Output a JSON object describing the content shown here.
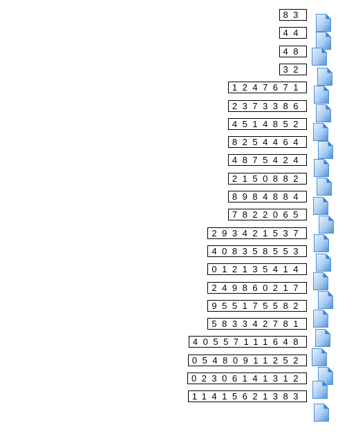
{
  "rows": [
    {
      "digits": "83"
    },
    {
      "digits": "44"
    },
    {
      "digits": "48"
    },
    {
      "digits": "32"
    },
    {
      "digits": "1247671"
    },
    {
      "digits": "2373386"
    },
    {
      "digits": "4514852"
    },
    {
      "digits": "8254464"
    },
    {
      "digits": "4875424"
    },
    {
      "digits": "2150882"
    },
    {
      "digits": "8984884"
    },
    {
      "digits": "7822065"
    },
    {
      "digits": "293421537"
    },
    {
      "digits": "408358553"
    },
    {
      "digits": "012135414"
    },
    {
      "digits": "249860217"
    },
    {
      "digits": "955175582"
    },
    {
      "digits": "583342781"
    },
    {
      "digits": "40557111648"
    },
    {
      "digits": "05480911252"
    },
    {
      "digits": "02306141312"
    },
    {
      "digits": "11415621383"
    }
  ],
  "icon": "document-icon",
  "colors": {
    "icon_light": "#e9f3fd",
    "icon_mid": "#a9cdf3",
    "icon_dark": "#4d8fd6",
    "icon_fold": "#3f83d0",
    "border": "#000000"
  }
}
